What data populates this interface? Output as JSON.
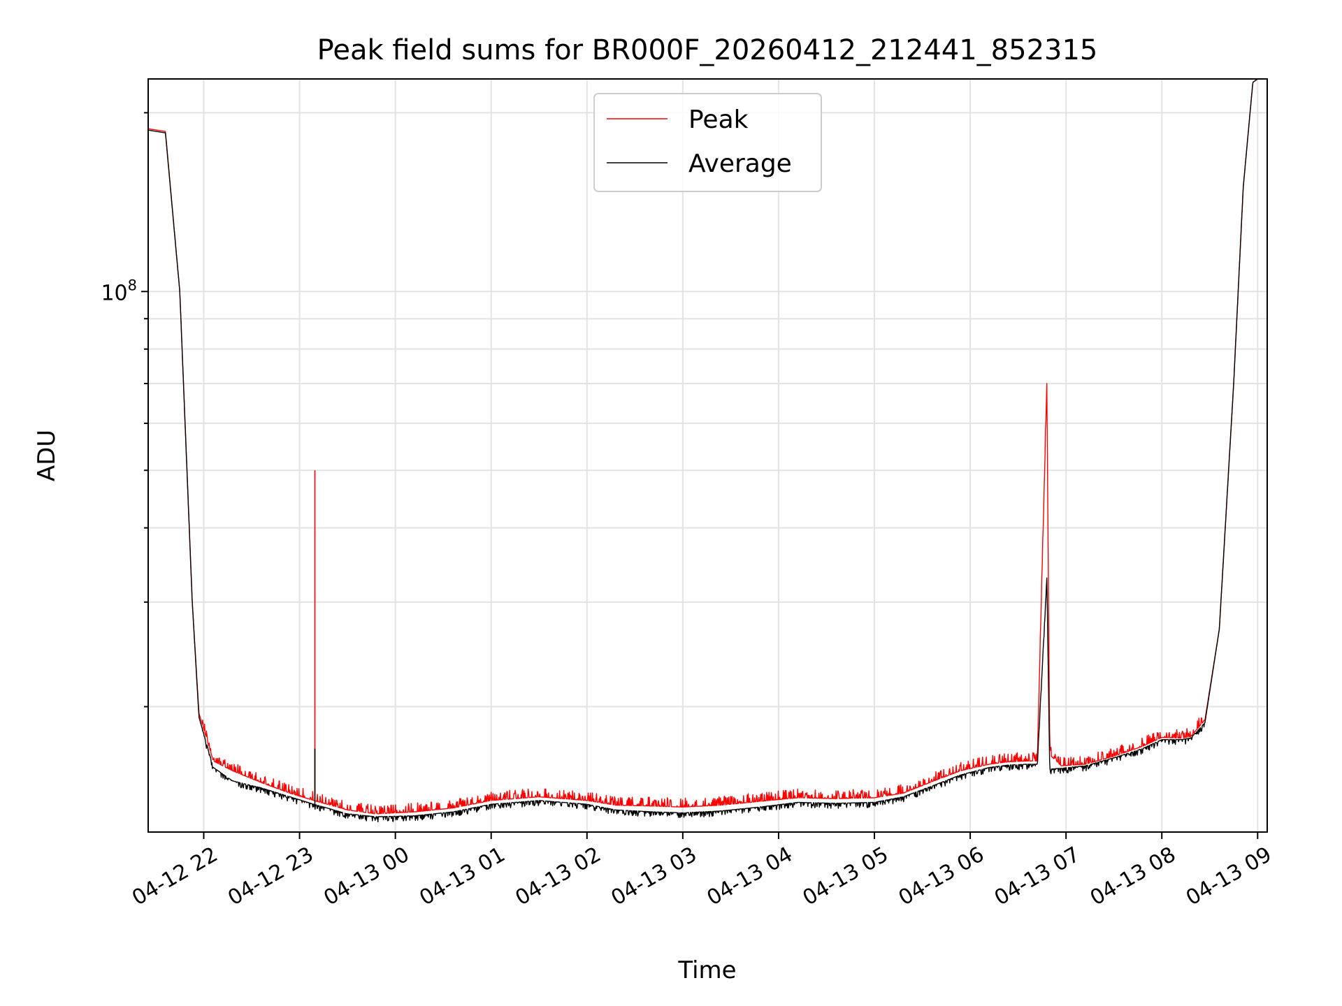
{
  "chart_data": {
    "type": "line",
    "title": "Peak field sums for BR000F_20260412_212441_852315",
    "xlabel": "Time",
    "ylabel": "ADU",
    "yscale": "log",
    "x_unit": "hours since 04-12 21:00",
    "xlim": [
      21.42,
      33.1
    ],
    "ylim": [
      12300000,
      228000000
    ],
    "x_ticks": [
      {
        "x": 22,
        "label": "04-12 22"
      },
      {
        "x": 23,
        "label": "04-12 23"
      },
      {
        "x": 24,
        "label": "04-13 00"
      },
      {
        "x": 25,
        "label": "04-13 01"
      },
      {
        "x": 26,
        "label": "04-13 02"
      },
      {
        "x": 27,
        "label": "04-13 03"
      },
      {
        "x": 28,
        "label": "04-13 04"
      },
      {
        "x": 29,
        "label": "04-13 05"
      },
      {
        "x": 30,
        "label": "04-13 06"
      },
      {
        "x": 31,
        "label": "04-13 07"
      },
      {
        "x": 32,
        "label": "04-13 08"
      },
      {
        "x": 33,
        "label": "04-13 09"
      }
    ],
    "y_major_ticks": [
      {
        "value": 100000000,
        "base": "10",
        "exp": "8"
      }
    ],
    "y_minor_ticks": [
      20000000,
      30000000,
      40000000,
      50000000,
      60000000,
      70000000,
      80000000,
      90000000,
      200000000
    ],
    "legend": {
      "position": "upper center",
      "entries": [
        "Peak",
        "Average"
      ]
    },
    "series": [
      {
        "name": "Peak",
        "color": "#ff0000",
        "points": [
          [
            21.42,
            188000000
          ],
          [
            21.6,
            186000000
          ],
          [
            21.75,
            100000000
          ],
          [
            21.88,
            30000000
          ],
          [
            21.95,
            19500000
          ],
          [
            22.1,
            16200000
          ],
          [
            22.3,
            15600000
          ],
          [
            22.6,
            14900000
          ],
          [
            22.9,
            14300000
          ],
          [
            23.15,
            13900000
          ],
          [
            23.5,
            13400000
          ],
          [
            23.8,
            13200000
          ],
          [
            24.2,
            13300000
          ],
          [
            24.6,
            13500000
          ],
          [
            25.0,
            13900000
          ],
          [
            25.5,
            14100000
          ],
          [
            26.0,
            13900000
          ],
          [
            26.3,
            13650000
          ],
          [
            26.7,
            13600000
          ],
          [
            27.0,
            13550000
          ],
          [
            27.4,
            13650000
          ],
          [
            27.8,
            13850000
          ],
          [
            28.2,
            14050000
          ],
          [
            28.6,
            14000000
          ],
          [
            29.0,
            14050000
          ],
          [
            29.3,
            14300000
          ],
          [
            29.6,
            14950000
          ],
          [
            29.9,
            15600000
          ],
          [
            30.2,
            16000000
          ],
          [
            30.4,
            16150000
          ],
          [
            30.6,
            16200000
          ],
          [
            30.7,
            16200000
          ],
          [
            30.8,
            70000000
          ],
          [
            30.83,
            16600000
          ],
          [
            30.95,
            15900000
          ],
          [
            31.2,
            16000000
          ],
          [
            31.5,
            16500000
          ],
          [
            31.8,
            17150000
          ],
          [
            32.0,
            17750000
          ],
          [
            32.2,
            17700000
          ],
          [
            32.3,
            17800000
          ],
          [
            32.45,
            19000000
          ],
          [
            32.6,
            27000000
          ],
          [
            32.75,
            70000000
          ],
          [
            32.85,
            150000000
          ],
          [
            32.95,
            225000000
          ],
          [
            33.0,
            228000000
          ]
        ],
        "spikes": [
          [
            23.16,
            50000000
          ],
          [
            30.81,
            70000000
          ]
        ]
      },
      {
        "name": "Average",
        "color": "#000000",
        "points": [
          [
            21.42,
            187000000
          ],
          [
            21.6,
            185000000
          ],
          [
            21.75,
            100000000
          ],
          [
            21.88,
            30000000
          ],
          [
            21.95,
            19200000
          ],
          [
            22.1,
            15800000
          ],
          [
            22.3,
            15000000
          ],
          [
            22.6,
            14600000
          ],
          [
            22.9,
            14100000
          ],
          [
            23.15,
            13700000
          ],
          [
            23.5,
            13200000
          ],
          [
            23.8,
            13050000
          ],
          [
            24.2,
            13100000
          ],
          [
            24.6,
            13300000
          ],
          [
            25.0,
            13700000
          ],
          [
            25.5,
            13900000
          ],
          [
            26.0,
            13700000
          ],
          [
            26.3,
            13400000
          ],
          [
            26.7,
            13300000
          ],
          [
            27.0,
            13250000
          ],
          [
            27.4,
            13350000
          ],
          [
            27.8,
            13550000
          ],
          [
            28.2,
            13800000
          ],
          [
            28.6,
            13750000
          ],
          [
            29.0,
            13800000
          ],
          [
            29.3,
            14100000
          ],
          [
            29.6,
            14700000
          ],
          [
            29.9,
            15350000
          ],
          [
            30.2,
            15800000
          ],
          [
            30.4,
            15950000
          ],
          [
            30.6,
            16000000
          ],
          [
            30.7,
            16000000
          ],
          [
            30.8,
            33000000
          ],
          [
            30.83,
            15700000
          ],
          [
            30.95,
            15750000
          ],
          [
            31.2,
            15900000
          ],
          [
            31.5,
            16400000
          ],
          [
            31.8,
            17000000
          ],
          [
            32.0,
            17600000
          ],
          [
            32.2,
            17600000
          ],
          [
            32.3,
            17700000
          ],
          [
            32.45,
            18800000
          ],
          [
            32.6,
            27000000
          ],
          [
            32.75,
            70000000
          ],
          [
            32.85,
            150000000
          ],
          [
            32.95,
            225000000
          ],
          [
            33.0,
            228000000
          ]
        ],
        "spikes": [
          [
            23.16,
            17000000
          ],
          [
            30.81,
            33000000
          ]
        ]
      }
    ]
  }
}
